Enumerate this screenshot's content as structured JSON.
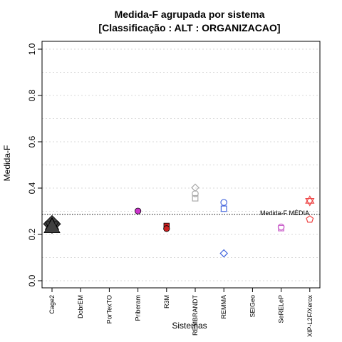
{
  "chart_data": {
    "type": "scatter",
    "title": "Medida-F agrupada por sistema",
    "subtitle": "[Classificação : ALT : ORGANIZACAO]",
    "xlabel": "Sistemas",
    "ylabel": "Medida-F",
    "ylim": [
      0,
      1
    ],
    "yticks": [
      "0.0",
      "0.2",
      "0.4",
      "0.6",
      "0.8",
      "1.0"
    ],
    "grid": "horizontal dotted",
    "categories": [
      "Cage2",
      "DobrEM",
      "PorTexTO",
      "Priberam",
      "R3M",
      "REMBRANDT",
      "REMMA",
      "SEIGeo",
      "SeRELeP",
      "XIP-L2F/Xerox"
    ],
    "reference_line": {
      "label": "Medida-F MÉDIA",
      "value": 0.286
    },
    "points": [
      {
        "category": "Cage2",
        "y": 0.245,
        "shape": "diamond-large",
        "color": "#404040"
      },
      {
        "category": "Cage2",
        "y": 0.238,
        "shape": "star-large",
        "color": "#404040"
      },
      {
        "category": "Cage2",
        "y": 0.232,
        "shape": "triangle-large",
        "color": "#404040"
      },
      {
        "category": "Priberam",
        "y": 0.301,
        "shape": "circle-filled",
        "color": "#cc33cc"
      },
      {
        "category": "R3M",
        "y": 0.237,
        "shape": "square-filled",
        "color": "#cc2222"
      },
      {
        "category": "R3M",
        "y": 0.225,
        "shape": "circle-filled",
        "color": "#cc2222"
      },
      {
        "category": "REMBRANDT",
        "y": 0.402,
        "shape": "diamond",
        "color": "#aaaaaa"
      },
      {
        "category": "REMBRANDT",
        "y": 0.376,
        "shape": "circle",
        "color": "#aaaaaa"
      },
      {
        "category": "REMBRANDT",
        "y": 0.356,
        "shape": "square",
        "color": "#aaaaaa"
      },
      {
        "category": "REMMA",
        "y": 0.338,
        "shape": "circle",
        "color": "#4466dd"
      },
      {
        "category": "REMMA",
        "y": 0.311,
        "shape": "square",
        "color": "#4466dd"
      },
      {
        "category": "REMMA",
        "y": 0.118,
        "shape": "diamond",
        "color": "#4466dd"
      },
      {
        "category": "SeRELeP",
        "y": 0.232,
        "shape": "circle",
        "color": "#cc66cc"
      },
      {
        "category": "SeRELeP",
        "y": 0.227,
        "shape": "square",
        "color": "#cc66cc"
      },
      {
        "category": "XIP-L2F/Xerox",
        "y": 0.345,
        "shape": "star",
        "color": "#ee4444"
      },
      {
        "category": "XIP-L2F/Xerox",
        "y": 0.265,
        "shape": "pentagon",
        "color": "#ee4444"
      }
    ]
  }
}
